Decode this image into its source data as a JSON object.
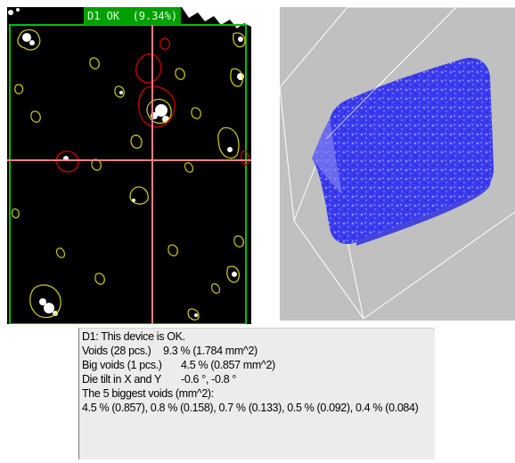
{
  "xray_view": {
    "status_label": "D1 OK  (9.34%)",
    "colors": {
      "background": "#000000",
      "frame": "#00c000",
      "crosshair": "#ff8080",
      "void_outline": "#d4d400",
      "big_void_outline": "#c00000",
      "void_fill": "#ffffff"
    }
  },
  "view_3d": {
    "colors": {
      "background": "#c0c0c0",
      "bounding_box": "#ffffff",
      "volume": "#3a3aee"
    }
  },
  "report": {
    "title": "D1: This device is OK.",
    "rows": [
      {
        "label": "Voids (28 pcs.)",
        "value": "9.3 % (1.784 mm^2)"
      },
      {
        "label": "Big voids (1 pcs.)",
        "value": "4.5 % (0.857 mm^2)"
      },
      {
        "label": "Die tilt in X and Y",
        "value": "-0.6 °, -0.8 °"
      }
    ],
    "biggest_title": "The 5 biggest voids (mm^2):",
    "biggest_values": "4.5 % (0.857), 0.8 % (0.158), 0.7 % (0.133), 0.5 % (0.092), 0.4 % (0.084)"
  }
}
